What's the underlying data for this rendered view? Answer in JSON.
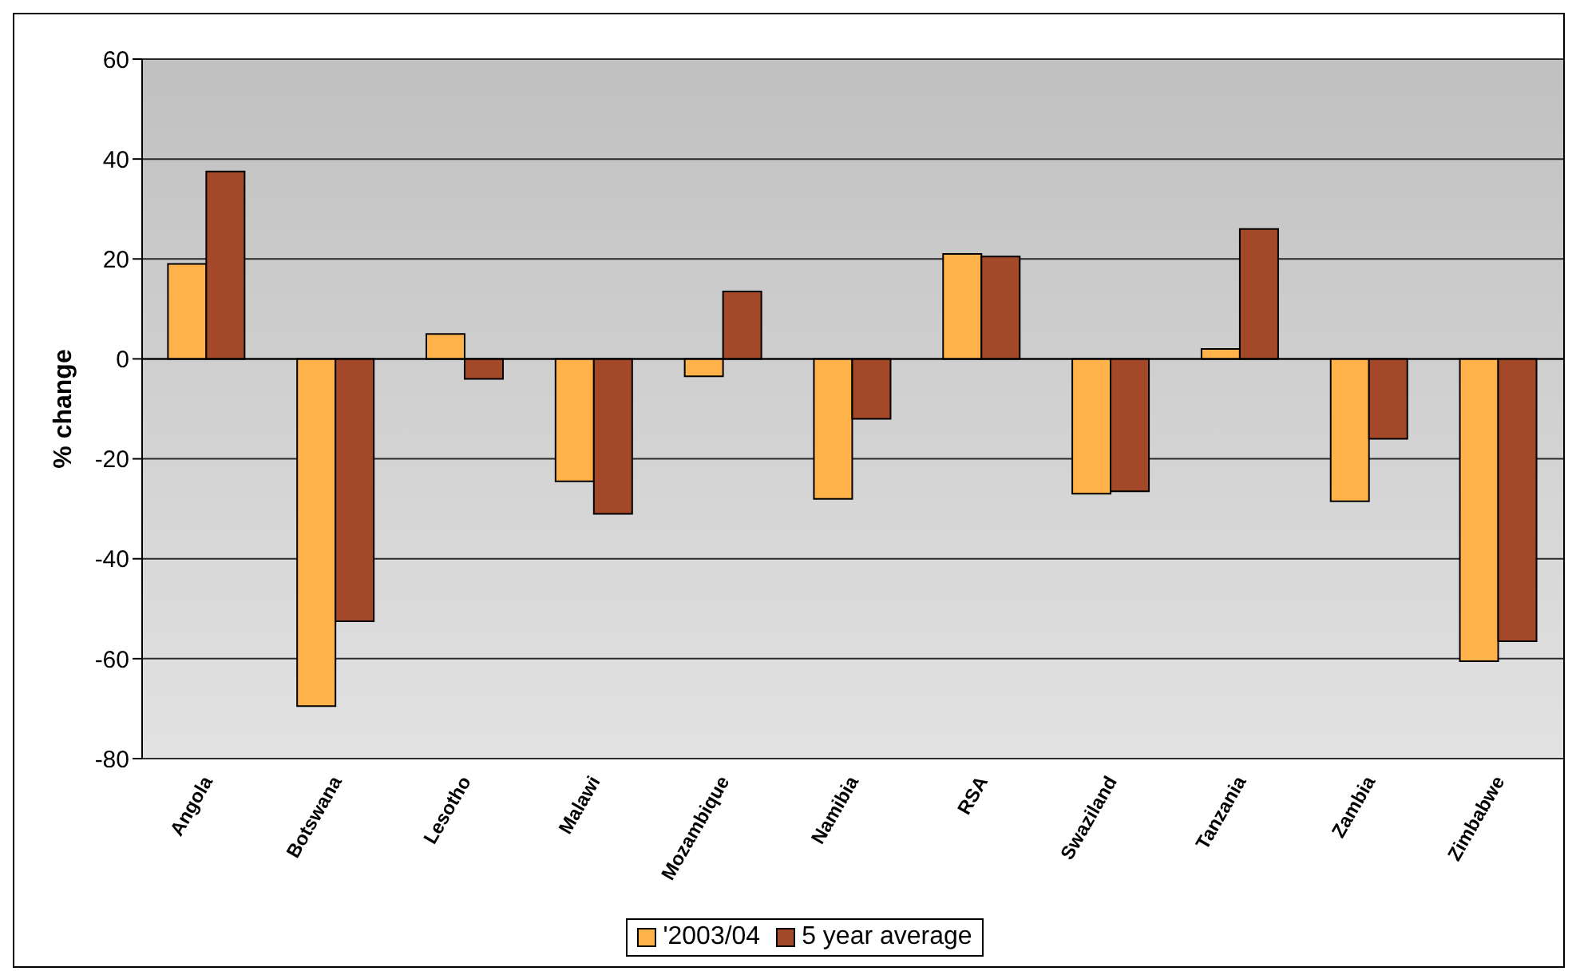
{
  "chart_data": {
    "type": "bar",
    "ylabel": "% change",
    "categories": [
      "Angola",
      "Botswana",
      "Lesotho",
      "Malawi",
      "Mozambique",
      "Namibia",
      "RSA",
      "Swaziland",
      "Tanzania",
      "Zambia",
      "Zimbabwe"
    ],
    "series": [
      {
        "name": "'2003/04",
        "color": "#ffb24a",
        "values": [
          19,
          -69.5,
          5,
          -24.5,
          -3.5,
          -28,
          21,
          -27,
          2,
          -28.5,
          -60.5
        ]
      },
      {
        "name": "5 year average",
        "color": "#a4482a",
        "values": [
          37.5,
          -52.5,
          -4,
          -31,
          13.5,
          -12,
          20.5,
          -26.5,
          26,
          -16,
          -56.5
        ]
      }
    ],
    "ylim": [
      -80,
      60
    ],
    "yticks": [
      -80,
      -60,
      -40,
      -20,
      0,
      20,
      40,
      60
    ],
    "grid": "y",
    "legend": "bottom"
  }
}
